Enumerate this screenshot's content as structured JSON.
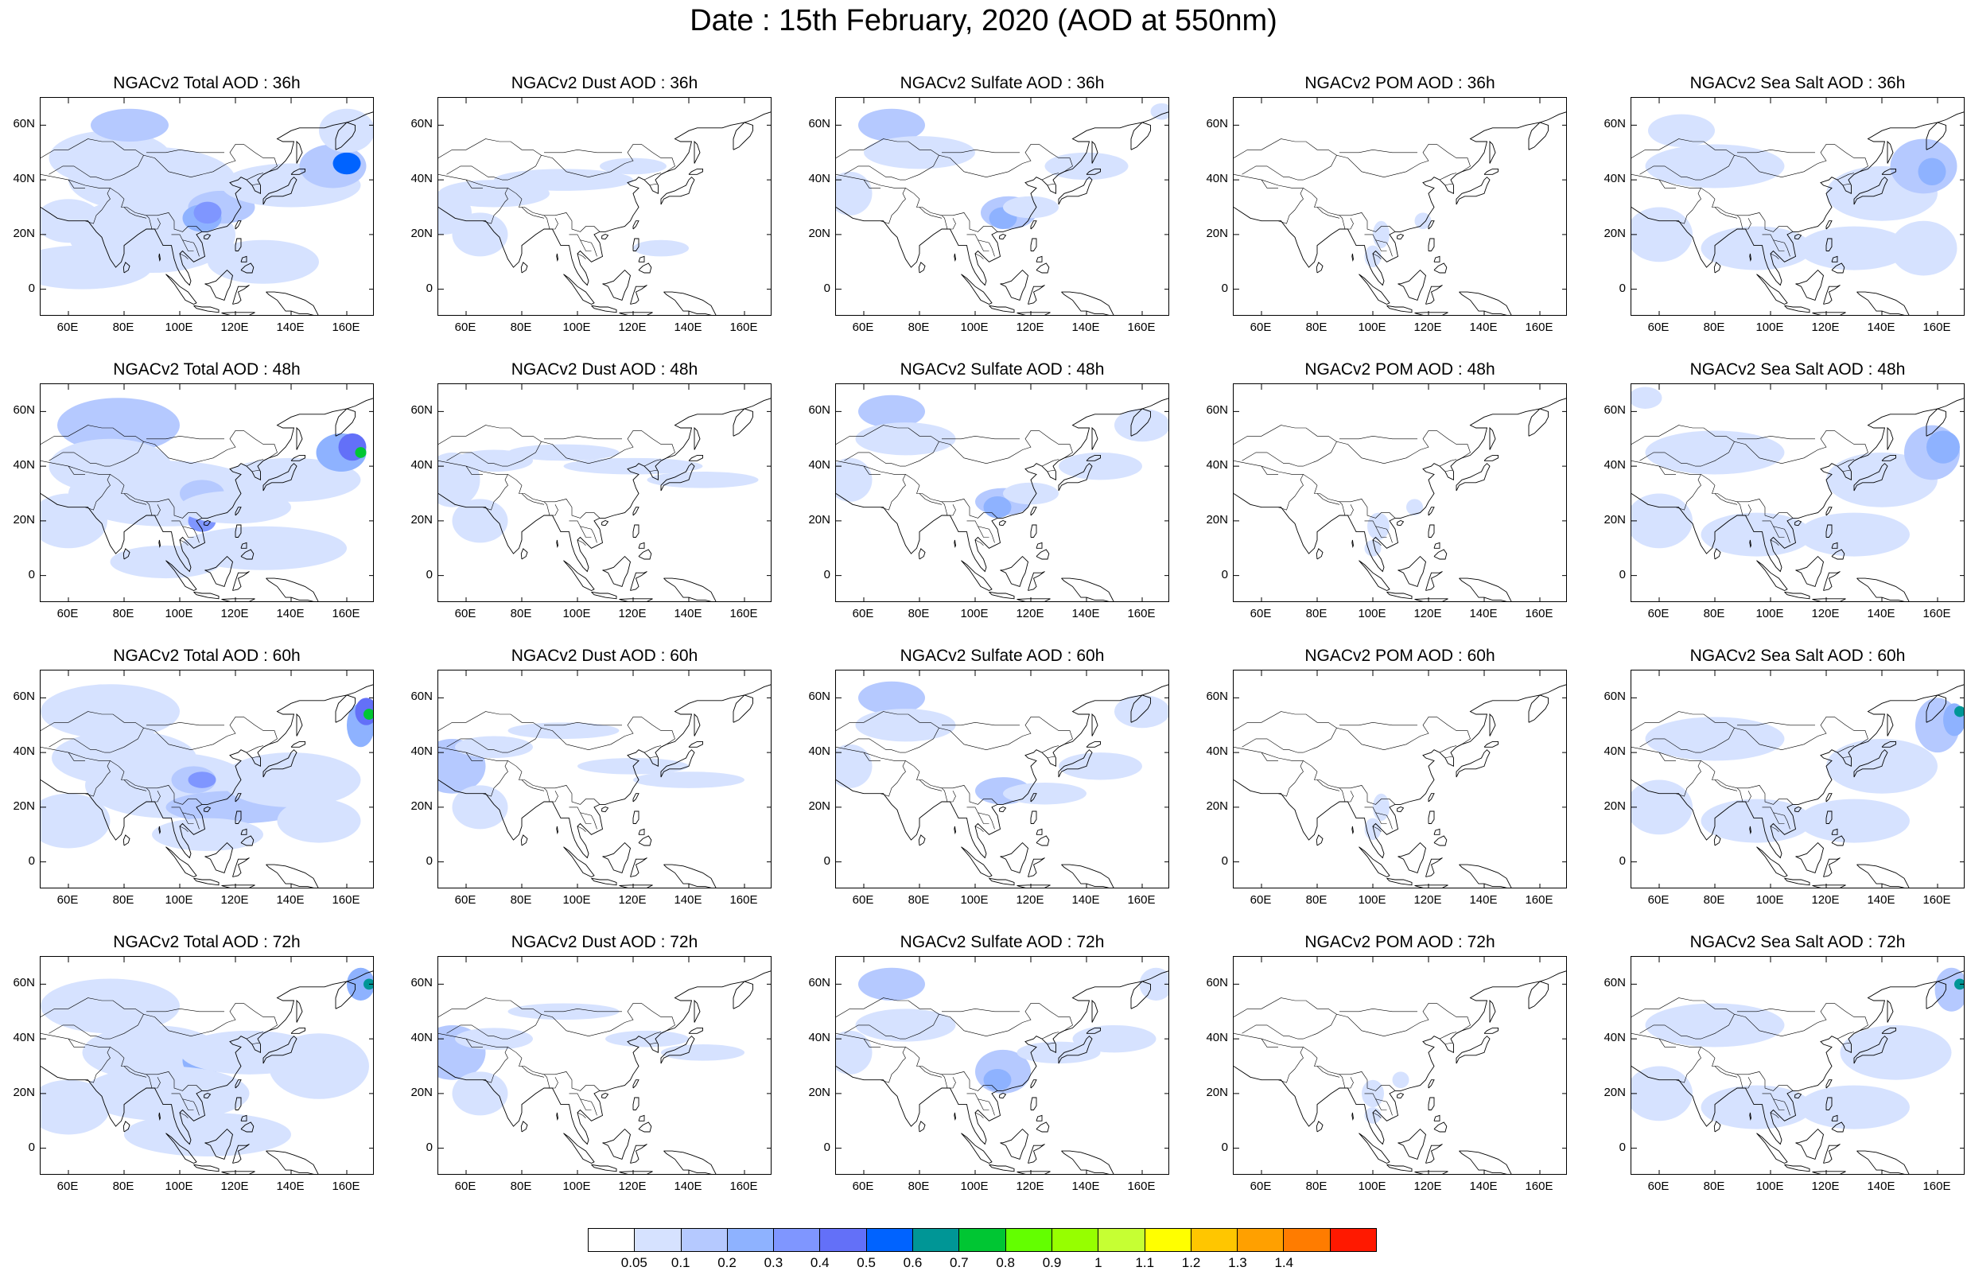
{
  "title": "Date : 15th February, 2020 (AOD at 550nm)",
  "lat_ticks": [
    "60N",
    "40N",
    "20N",
    "0"
  ],
  "lon_ticks": [
    "60E",
    "80E",
    "100E",
    "120E",
    "140E",
    "160E"
  ],
  "panels": [
    [
      "NGACv2 Total AOD : 36h",
      "NGACv2 Dust AOD : 36h",
      "NGACv2 Sulfate AOD : 36h",
      "NGACv2 POM AOD : 36h",
      "NGACv2 Sea Salt AOD : 36h"
    ],
    [
      "NGACv2 Total AOD : 48h",
      "NGACv2 Dust AOD : 48h",
      "NGACv2 Sulfate AOD : 48h",
      "NGACv2 POM AOD : 48h",
      "NGACv2 Sea Salt AOD : 48h"
    ],
    [
      "NGACv2 Total AOD : 60h",
      "NGACv2 Dust AOD : 60h",
      "NGACv2 Sulfate AOD : 60h",
      "NGACv2 POM AOD : 60h",
      "NGACv2 Sea Salt AOD : 60h"
    ],
    [
      "NGACv2 Total AOD : 72h",
      "NGACv2 Dust AOD : 72h",
      "NGACv2 Sulfate AOD : 72h",
      "NGACv2 POM AOD : 72h",
      "NGACv2 Sea Salt  AOD : 72h"
    ]
  ],
  "map_extent": {
    "lon": [
      50,
      170
    ],
    "lat": [
      -10,
      70
    ]
  },
  "colorbar": {
    "labels": [
      "0.05",
      "0.1",
      "0.2",
      "0.3",
      "0.4",
      "0.5",
      "0.6",
      "0.7",
      "0.8",
      "0.9",
      "1",
      "1.1",
      "1.2",
      "1.3",
      "1.4"
    ],
    "colors": [
      "#ffffff",
      "#d6e2ff",
      "#b5c9ff",
      "#8eb2ff",
      "#7f96ff",
      "#6370f8",
      "#0063ff",
      "#009696",
      "#00c633",
      "#63ff00",
      "#96ff00",
      "#c6ff33",
      "#ffff00",
      "#ffc600",
      "#ffa000",
      "#ff7c00",
      "#ff1900"
    ]
  }
}
